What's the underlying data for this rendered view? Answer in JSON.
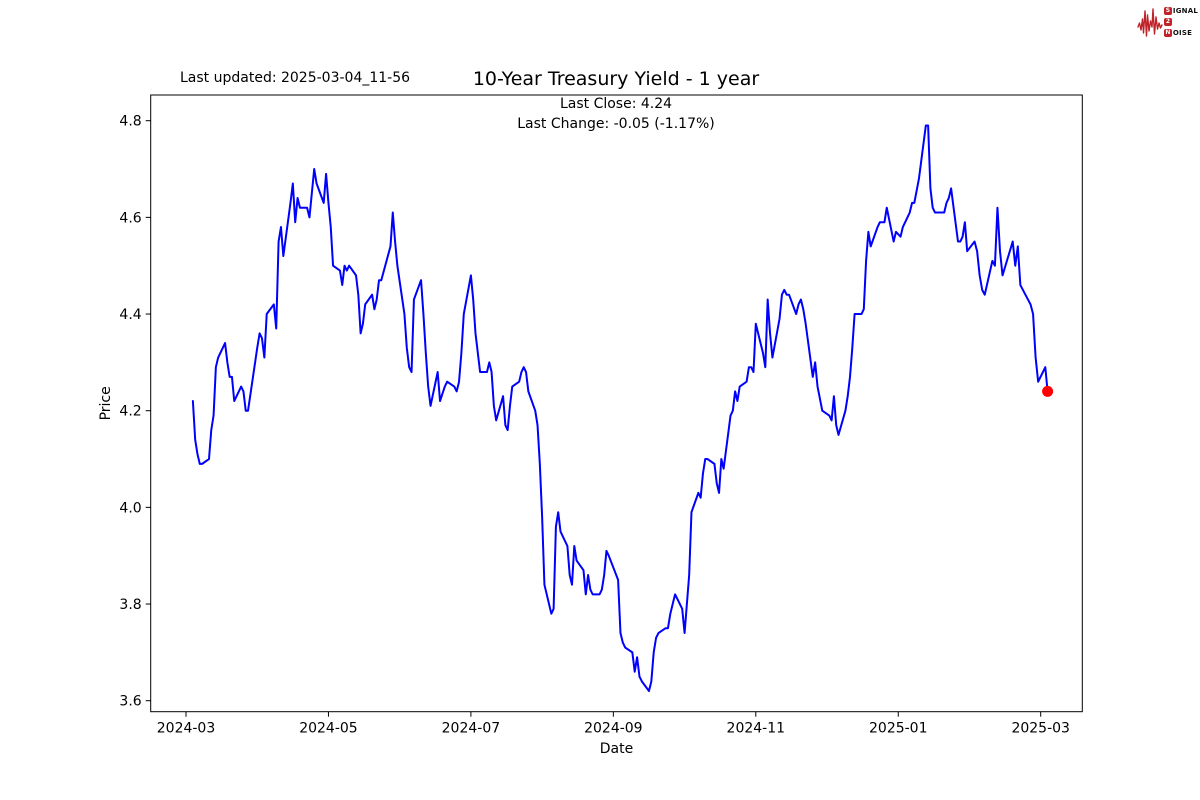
{
  "header": {
    "last_updated": "Last updated: 2025-03-04_11-56"
  },
  "logo": {
    "line1_badge": "S",
    "line1_text": "IGNAL",
    "line2_badge": "2",
    "line2_text": "",
    "line3_badge": "N",
    "line3_text": "OISE",
    "color": "#bf2228"
  },
  "chart_data": {
    "type": "line",
    "title": "10-Year Treasury Yield - 1 year",
    "subtitle_line1": "Last Close: 4.24",
    "subtitle_line2": "Last Change: -0.05 (-1.17%)",
    "last_close": 4.24,
    "last_change": "-0.05 (-1.17%)",
    "xlabel": "Date",
    "ylabel": "Price",
    "x_tick_labels": [
      "2024-03",
      "2024-05",
      "2024-07",
      "2024-09",
      "2024-11",
      "2025-01",
      "2025-03"
    ],
    "y_ticks": [
      3.6,
      3.8,
      4.0,
      4.2,
      4.4,
      4.6,
      4.8
    ],
    "ylim": [
      3.577,
      4.853
    ],
    "grid": false,
    "legend": "none",
    "line_color": "#0000ff",
    "marker_color": "#ff0000",
    "series": [
      {
        "name": "10-Year Treasury Yield",
        "points": [
          [
            "2024-03-04",
            4.22
          ],
          [
            "2024-03-05",
            4.14
          ],
          [
            "2024-03-06",
            4.11
          ],
          [
            "2024-03-07",
            4.09
          ],
          [
            "2024-03-08",
            4.09
          ],
          [
            "2024-03-11",
            4.1
          ],
          [
            "2024-03-12",
            4.16
          ],
          [
            "2024-03-13",
            4.19
          ],
          [
            "2024-03-14",
            4.29
          ],
          [
            "2024-03-15",
            4.31
          ],
          [
            "2024-03-18",
            4.34
          ],
          [
            "2024-03-19",
            4.3
          ],
          [
            "2024-03-20",
            4.27
          ],
          [
            "2024-03-21",
            4.27
          ],
          [
            "2024-03-22",
            4.22
          ],
          [
            "2024-03-25",
            4.25
          ],
          [
            "2024-03-26",
            4.24
          ],
          [
            "2024-03-27",
            4.2
          ],
          [
            "2024-03-28",
            4.2
          ],
          [
            "2024-04-01",
            4.33
          ],
          [
            "2024-04-02",
            4.36
          ],
          [
            "2024-04-03",
            4.35
          ],
          [
            "2024-04-04",
            4.31
          ],
          [
            "2024-04-05",
            4.4
          ],
          [
            "2024-04-08",
            4.42
          ],
          [
            "2024-04-09",
            4.37
          ],
          [
            "2024-04-10",
            4.55
          ],
          [
            "2024-04-11",
            4.58
          ],
          [
            "2024-04-12",
            4.52
          ],
          [
            "2024-04-15",
            4.63
          ],
          [
            "2024-04-16",
            4.67
          ],
          [
            "2024-04-17",
            4.59
          ],
          [
            "2024-04-18",
            4.64
          ],
          [
            "2024-04-19",
            4.62
          ],
          [
            "2024-04-22",
            4.62
          ],
          [
            "2024-04-23",
            4.6
          ],
          [
            "2024-04-24",
            4.65
          ],
          [
            "2024-04-25",
            4.7
          ],
          [
            "2024-04-26",
            4.67
          ],
          [
            "2024-04-29",
            4.63
          ],
          [
            "2024-04-30",
            4.69
          ],
          [
            "2024-05-01",
            4.63
          ],
          [
            "2024-05-02",
            4.58
          ],
          [
            "2024-05-03",
            4.5
          ],
          [
            "2024-05-06",
            4.49
          ],
          [
            "2024-05-07",
            4.46
          ],
          [
            "2024-05-08",
            4.5
          ],
          [
            "2024-05-09",
            4.49
          ],
          [
            "2024-05-10",
            4.5
          ],
          [
            "2024-05-13",
            4.48
          ],
          [
            "2024-05-14",
            4.44
          ],
          [
            "2024-05-15",
            4.36
          ],
          [
            "2024-05-16",
            4.38
          ],
          [
            "2024-05-17",
            4.42
          ],
          [
            "2024-05-20",
            4.44
          ],
          [
            "2024-05-21",
            4.41
          ],
          [
            "2024-05-22",
            4.43
          ],
          [
            "2024-05-23",
            4.47
          ],
          [
            "2024-05-24",
            4.47
          ],
          [
            "2024-05-28",
            4.54
          ],
          [
            "2024-05-29",
            4.61
          ],
          [
            "2024-05-30",
            4.55
          ],
          [
            "2024-05-31",
            4.5
          ],
          [
            "2024-06-03",
            4.4
          ],
          [
            "2024-06-04",
            4.33
          ],
          [
            "2024-06-05",
            4.29
          ],
          [
            "2024-06-06",
            4.28
          ],
          [
            "2024-06-07",
            4.43
          ],
          [
            "2024-06-10",
            4.47
          ],
          [
            "2024-06-11",
            4.4
          ],
          [
            "2024-06-12",
            4.32
          ],
          [
            "2024-06-13",
            4.25
          ],
          [
            "2024-06-14",
            4.21
          ],
          [
            "2024-06-17",
            4.28
          ],
          [
            "2024-06-18",
            4.22
          ],
          [
            "2024-06-20",
            4.25
          ],
          [
            "2024-06-21",
            4.26
          ],
          [
            "2024-06-24",
            4.25
          ],
          [
            "2024-06-25",
            4.24
          ],
          [
            "2024-06-26",
            4.26
          ],
          [
            "2024-06-27",
            4.32
          ],
          [
            "2024-06-28",
            4.4
          ],
          [
            "2024-07-01",
            4.48
          ],
          [
            "2024-07-02",
            4.43
          ],
          [
            "2024-07-03",
            4.36
          ],
          [
            "2024-07-05",
            4.28
          ],
          [
            "2024-07-08",
            4.28
          ],
          [
            "2024-07-09",
            4.3
          ],
          [
            "2024-07-10",
            4.28
          ],
          [
            "2024-07-11",
            4.21
          ],
          [
            "2024-07-12",
            4.18
          ],
          [
            "2024-07-15",
            4.23
          ],
          [
            "2024-07-16",
            4.17
          ],
          [
            "2024-07-17",
            4.16
          ],
          [
            "2024-07-18",
            4.21
          ],
          [
            "2024-07-19",
            4.25
          ],
          [
            "2024-07-22",
            4.26
          ],
          [
            "2024-07-23",
            4.28
          ],
          [
            "2024-07-24",
            4.29
          ],
          [
            "2024-07-25",
            4.28
          ],
          [
            "2024-07-26",
            4.24
          ],
          [
            "2024-07-29",
            4.2
          ],
          [
            "2024-07-30",
            4.17
          ],
          [
            "2024-07-31",
            4.09
          ],
          [
            "2024-08-01",
            3.98
          ],
          [
            "2024-08-02",
            3.84
          ],
          [
            "2024-08-05",
            3.78
          ],
          [
            "2024-08-06",
            3.79
          ],
          [
            "2024-08-07",
            3.96
          ],
          [
            "2024-08-08",
            3.99
          ],
          [
            "2024-08-09",
            3.95
          ],
          [
            "2024-08-12",
            3.92
          ],
          [
            "2024-08-13",
            3.86
          ],
          [
            "2024-08-14",
            3.84
          ],
          [
            "2024-08-15",
            3.92
          ],
          [
            "2024-08-16",
            3.89
          ],
          [
            "2024-08-19",
            3.87
          ],
          [
            "2024-08-20",
            3.82
          ],
          [
            "2024-08-21",
            3.86
          ],
          [
            "2024-08-22",
            3.83
          ],
          [
            "2024-08-23",
            3.82
          ],
          [
            "2024-08-26",
            3.82
          ],
          [
            "2024-08-27",
            3.83
          ],
          [
            "2024-08-28",
            3.86
          ],
          [
            "2024-08-29",
            3.91
          ],
          [
            "2024-08-30",
            3.9
          ],
          [
            "2024-09-03",
            3.85
          ],
          [
            "2024-09-04",
            3.74
          ],
          [
            "2024-09-05",
            3.72
          ],
          [
            "2024-09-06",
            3.71
          ],
          [
            "2024-09-09",
            3.7
          ],
          [
            "2024-09-10",
            3.66
          ],
          [
            "2024-09-11",
            3.69
          ],
          [
            "2024-09-12",
            3.65
          ],
          [
            "2024-09-13",
            3.64
          ],
          [
            "2024-09-16",
            3.62
          ],
          [
            "2024-09-17",
            3.64
          ],
          [
            "2024-09-18",
            3.7
          ],
          [
            "2024-09-19",
            3.73
          ],
          [
            "2024-09-20",
            3.74
          ],
          [
            "2024-09-23",
            3.75
          ],
          [
            "2024-09-24",
            3.75
          ],
          [
            "2024-09-25",
            3.78
          ],
          [
            "2024-09-26",
            3.8
          ],
          [
            "2024-09-27",
            3.82
          ],
          [
            "2024-09-30",
            3.79
          ],
          [
            "2024-10-01",
            3.74
          ],
          [
            "2024-10-03",
            3.86
          ],
          [
            "2024-10-04",
            3.99
          ],
          [
            "2024-10-07",
            4.03
          ],
          [
            "2024-10-08",
            4.02
          ],
          [
            "2024-10-09",
            4.07
          ],
          [
            "2024-10-10",
            4.1
          ],
          [
            "2024-10-11",
            4.1
          ],
          [
            "2024-10-14",
            4.09
          ],
          [
            "2024-10-15",
            4.05
          ],
          [
            "2024-10-16",
            4.03
          ],
          [
            "2024-10-17",
            4.1
          ],
          [
            "2024-10-18",
            4.08
          ],
          [
            "2024-10-21",
            4.19
          ],
          [
            "2024-10-22",
            4.2
          ],
          [
            "2024-10-23",
            4.24
          ],
          [
            "2024-10-24",
            4.22
          ],
          [
            "2024-10-25",
            4.25
          ],
          [
            "2024-10-28",
            4.26
          ],
          [
            "2024-10-29",
            4.29
          ],
          [
            "2024-10-30",
            4.29
          ],
          [
            "2024-10-31",
            4.28
          ],
          [
            "2024-11-01",
            4.38
          ],
          [
            "2024-11-04",
            4.32
          ],
          [
            "2024-11-05",
            4.29
          ],
          [
            "2024-11-06",
            4.43
          ],
          [
            "2024-11-07",
            4.36
          ],
          [
            "2024-11-08",
            4.31
          ],
          [
            "2024-11-11",
            4.39
          ],
          [
            "2024-11-12",
            4.44
          ],
          [
            "2024-11-13",
            4.45
          ],
          [
            "2024-11-14",
            4.44
          ],
          [
            "2024-11-15",
            4.44
          ],
          [
            "2024-11-18",
            4.4
          ],
          [
            "2024-11-19",
            4.42
          ],
          [
            "2024-11-20",
            4.43
          ],
          [
            "2024-11-21",
            4.41
          ],
          [
            "2024-11-22",
            4.38
          ],
          [
            "2024-11-25",
            4.27
          ],
          [
            "2024-11-26",
            4.3
          ],
          [
            "2024-11-27",
            4.25
          ],
          [
            "2024-11-29",
            4.2
          ],
          [
            "2024-12-02",
            4.19
          ],
          [
            "2024-12-03",
            4.18
          ],
          [
            "2024-12-04",
            4.23
          ],
          [
            "2024-12-05",
            4.17
          ],
          [
            "2024-12-06",
            4.15
          ],
          [
            "2024-12-09",
            4.2
          ],
          [
            "2024-12-10",
            4.23
          ],
          [
            "2024-12-11",
            4.27
          ],
          [
            "2024-12-12",
            4.33
          ],
          [
            "2024-12-13",
            4.4
          ],
          [
            "2024-12-16",
            4.4
          ],
          [
            "2024-12-17",
            4.41
          ],
          [
            "2024-12-18",
            4.51
          ],
          [
            "2024-12-19",
            4.57
          ],
          [
            "2024-12-20",
            4.54
          ],
          [
            "2024-12-23",
            4.58
          ],
          [
            "2024-12-24",
            4.59
          ],
          [
            "2024-12-26",
            4.59
          ],
          [
            "2024-12-27",
            4.62
          ],
          [
            "2024-12-30",
            4.55
          ],
          [
            "2024-12-31",
            4.57
          ],
          [
            "2025-01-02",
            4.56
          ],
          [
            "2025-01-03",
            4.58
          ],
          [
            "2025-01-06",
            4.61
          ],
          [
            "2025-01-07",
            4.63
          ],
          [
            "2025-01-08",
            4.63
          ],
          [
            "2025-01-10",
            4.68
          ],
          [
            "2025-01-13",
            4.79
          ],
          [
            "2025-01-14",
            4.79
          ],
          [
            "2025-01-15",
            4.66
          ],
          [
            "2025-01-16",
            4.62
          ],
          [
            "2025-01-17",
            4.61
          ],
          [
            "2025-01-21",
            4.61
          ],
          [
            "2025-01-22",
            4.63
          ],
          [
            "2025-01-23",
            4.64
          ],
          [
            "2025-01-24",
            4.66
          ],
          [
            "2025-01-27",
            4.55
          ],
          [
            "2025-01-28",
            4.55
          ],
          [
            "2025-01-29",
            4.56
          ],
          [
            "2025-01-30",
            4.59
          ],
          [
            "2025-01-31",
            4.53
          ],
          [
            "2025-02-03",
            4.55
          ],
          [
            "2025-02-04",
            4.53
          ],
          [
            "2025-02-05",
            4.48
          ],
          [
            "2025-02-06",
            4.45
          ],
          [
            "2025-02-07",
            4.44
          ],
          [
            "2025-02-10",
            4.51
          ],
          [
            "2025-02-11",
            4.5
          ],
          [
            "2025-02-12",
            4.62
          ],
          [
            "2025-02-13",
            4.53
          ],
          [
            "2025-02-14",
            4.48
          ],
          [
            "2025-02-18",
            4.55
          ],
          [
            "2025-02-19",
            4.5
          ],
          [
            "2025-02-20",
            4.54
          ],
          [
            "2025-02-21",
            4.46
          ],
          [
            "2025-02-24",
            4.43
          ],
          [
            "2025-02-25",
            4.42
          ],
          [
            "2025-02-26",
            4.4
          ],
          [
            "2025-02-27",
            4.31
          ],
          [
            "2025-02-28",
            4.26
          ],
          [
            "2025-03-03",
            4.29
          ],
          [
            "2025-03-04",
            4.24
          ]
        ]
      }
    ]
  }
}
